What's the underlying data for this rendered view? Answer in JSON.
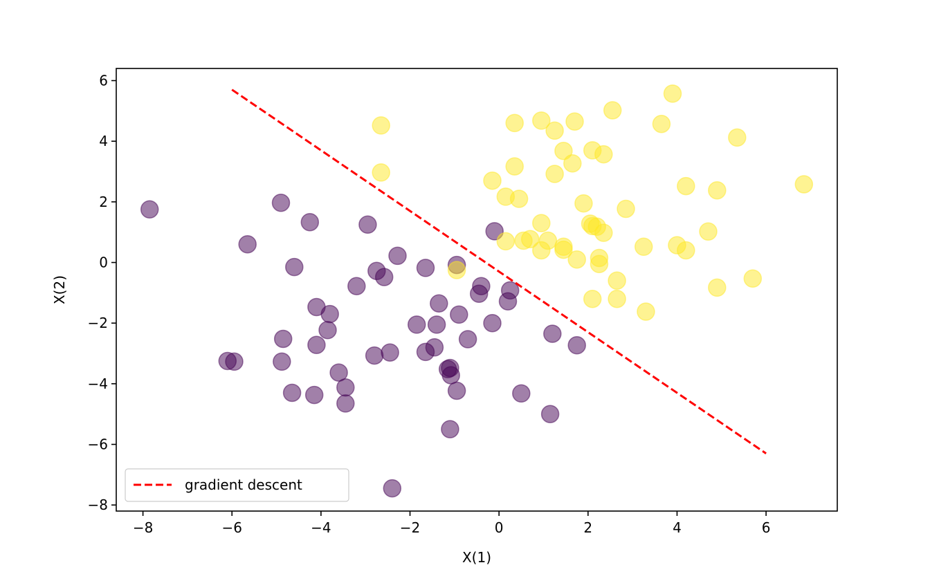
{
  "chart_data": {
    "type": "scatter",
    "xlabel": "X(1)",
    "ylabel": "X(2)",
    "xlim": [
      -8.6,
      7.6
    ],
    "ylim": [
      -8.2,
      6.4
    ],
    "x_ticks": [
      -8,
      -6,
      -4,
      -2,
      0,
      2,
      4,
      6
    ],
    "y_ticks": [
      -8,
      -6,
      -4,
      -2,
      0,
      2,
      4,
      6
    ],
    "x_tick_labels": [
      "−8",
      "−6",
      "−4",
      "−2",
      "0",
      "2",
      "4",
      "6"
    ],
    "y_tick_labels": [
      "−8",
      "−6",
      "−4",
      "−2",
      "0",
      "2",
      "4",
      "6"
    ],
    "grid": false,
    "legend_position": "lower-left",
    "colors": {
      "class0": "#440154",
      "class1": "#fde725",
      "line": "#ff0000"
    },
    "series": [
      {
        "class": 0,
        "points": [
          [
            -7.85,
            1.75
          ],
          [
            -5.65,
            0.6
          ],
          [
            -4.9,
            1.97
          ],
          [
            -4.25,
            1.33
          ],
          [
            -4.6,
            -0.15
          ],
          [
            -2.95,
            1.25
          ],
          [
            -2.28,
            0.22
          ],
          [
            -2.75,
            -0.28
          ],
          [
            -2.58,
            -0.48
          ],
          [
            -3.2,
            -0.78
          ],
          [
            -1.65,
            -0.18
          ],
          [
            -0.95,
            -0.08
          ],
          [
            -0.4,
            -0.78
          ],
          [
            -0.45,
            -1.03
          ],
          [
            0.25,
            -0.92
          ],
          [
            0.2,
            -1.28
          ],
          [
            -0.1,
            1.03
          ],
          [
            -1.35,
            -1.35
          ],
          [
            -4.1,
            -1.47
          ],
          [
            -3.8,
            -1.7
          ],
          [
            -3.85,
            -2.23
          ],
          [
            -4.1,
            -2.72
          ],
          [
            -4.85,
            -2.52
          ],
          [
            -4.88,
            -3.27
          ],
          [
            -6.1,
            -3.25
          ],
          [
            -5.95,
            -3.27
          ],
          [
            -2.8,
            -3.07
          ],
          [
            -2.45,
            -2.97
          ],
          [
            -1.85,
            -2.05
          ],
          [
            -1.4,
            -2.05
          ],
          [
            -0.9,
            -1.72
          ],
          [
            -0.15,
            -2.0
          ],
          [
            -0.7,
            -2.53
          ],
          [
            -1.45,
            -2.8
          ],
          [
            -1.65,
            -2.95
          ],
          [
            -1.1,
            -3.48
          ],
          [
            -1.15,
            -3.52
          ],
          [
            -1.08,
            -3.72
          ],
          [
            -3.6,
            -3.63
          ],
          [
            -3.45,
            -4.12
          ],
          [
            -3.45,
            -4.65
          ],
          [
            -4.65,
            -4.3
          ],
          [
            -4.15,
            -4.37
          ],
          [
            -0.95,
            -4.23
          ],
          [
            0.5,
            -4.32
          ],
          [
            1.15,
            -5.0
          ],
          [
            -1.1,
            -5.5
          ],
          [
            -2.4,
            -7.45
          ],
          [
            1.2,
            -2.35
          ],
          [
            1.75,
            -2.73
          ]
        ]
      },
      {
        "class": 1,
        "points": [
          [
            -2.65,
            4.52
          ],
          [
            -2.65,
            2.97
          ],
          [
            0.35,
            4.6
          ],
          [
            0.95,
            4.68
          ],
          [
            1.25,
            4.35
          ],
          [
            1.7,
            4.65
          ],
          [
            2.55,
            5.02
          ],
          [
            3.9,
            5.57
          ],
          [
            3.65,
            4.57
          ],
          [
            5.35,
            4.12
          ],
          [
            1.45,
            3.68
          ],
          [
            2.1,
            3.7
          ],
          [
            2.35,
            3.57
          ],
          [
            1.65,
            3.27
          ],
          [
            0.35,
            3.17
          ],
          [
            1.25,
            2.92
          ],
          [
            -0.15,
            2.7
          ],
          [
            0.15,
            2.17
          ],
          [
            0.45,
            2.1
          ],
          [
            1.9,
            1.95
          ],
          [
            2.85,
            1.77
          ],
          [
            4.2,
            2.52
          ],
          [
            4.9,
            2.38
          ],
          [
            6.85,
            2.58
          ],
          [
            0.95,
            1.3
          ],
          [
            2.05,
            1.28
          ],
          [
            2.2,
            1.18
          ],
          [
            2.35,
            0.98
          ],
          [
            2.1,
            1.2
          ],
          [
            0.15,
            0.7
          ],
          [
            0.55,
            0.72
          ],
          [
            0.7,
            0.77
          ],
          [
            1.1,
            0.72
          ],
          [
            1.45,
            0.52
          ],
          [
            1.45,
            0.42
          ],
          [
            0.95,
            0.4
          ],
          [
            1.75,
            0.1
          ],
          [
            2.25,
            0.15
          ],
          [
            2.25,
            -0.05
          ],
          [
            3.25,
            0.52
          ],
          [
            4.0,
            0.57
          ],
          [
            4.2,
            0.4
          ],
          [
            4.7,
            1.02
          ],
          [
            -0.95,
            -0.25
          ],
          [
            2.65,
            -0.6
          ],
          [
            2.1,
            -1.2
          ],
          [
            2.65,
            -1.2
          ],
          [
            4.9,
            -0.83
          ],
          [
            5.7,
            -0.53
          ],
          [
            3.3,
            -1.62
          ]
        ]
      }
    ],
    "line": {
      "name": "gradient descent",
      "x": [
        -6,
        6
      ],
      "y": [
        5.7,
        -6.3
      ],
      "style": "dashed"
    }
  }
}
